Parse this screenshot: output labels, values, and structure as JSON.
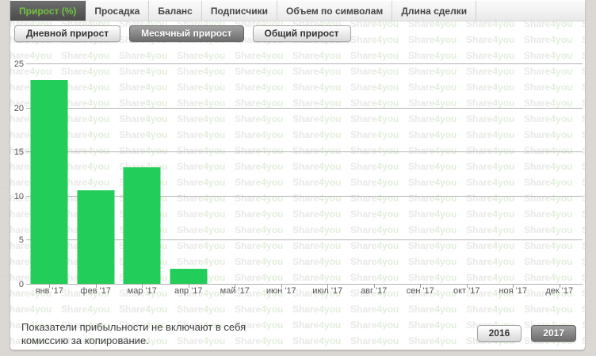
{
  "tabs": {
    "items": [
      {
        "label": "Прирост (%)",
        "active": true
      },
      {
        "label": "Просадка",
        "active": false
      },
      {
        "label": "Баланс",
        "active": false
      },
      {
        "label": "Подписчики",
        "active": false
      },
      {
        "label": "Объем по символам",
        "active": false
      },
      {
        "label": "Длина сделки",
        "active": false
      }
    ]
  },
  "period_buttons": {
    "items": [
      {
        "label": "Дневной прирост",
        "active": false
      },
      {
        "label": "Месячный прирост",
        "active": true
      },
      {
        "label": "Общий прирост",
        "active": false
      }
    ]
  },
  "chart_data": {
    "type": "bar",
    "title": "",
    "xlabel": "",
    "ylabel": "",
    "categories": [
      "янв '17",
      "фев '17",
      "мар '17",
      "апр '17",
      "май '17",
      "июн '17",
      "июл '17",
      "авг '17",
      "сен '17",
      "окт '17",
      "ноя '17",
      "дек '17"
    ],
    "values": [
      23.1,
      10.6,
      13.2,
      1.7,
      0,
      0,
      0,
      0,
      0,
      0,
      0,
      0
    ],
    "ylim": [
      0,
      25
    ],
    "yticks": [
      0,
      5,
      10,
      15,
      20,
      25
    ],
    "grid": true,
    "legend": "none",
    "bar_color": "#22cd5a"
  },
  "footer": {
    "note": "Показатели прибыльности не включают в себя комиссию за копирование.",
    "year_buttons": [
      {
        "label": "2016",
        "active": false
      },
      {
        "label": "2017",
        "active": true
      }
    ]
  },
  "watermark": {
    "part1": "Share",
    "part2": "4you"
  },
  "colors": {
    "bar": "#22cd5a",
    "active_tab_text": "#72c13e",
    "page_bg": "#dad7d2",
    "gridline": "#b3b3b3"
  }
}
